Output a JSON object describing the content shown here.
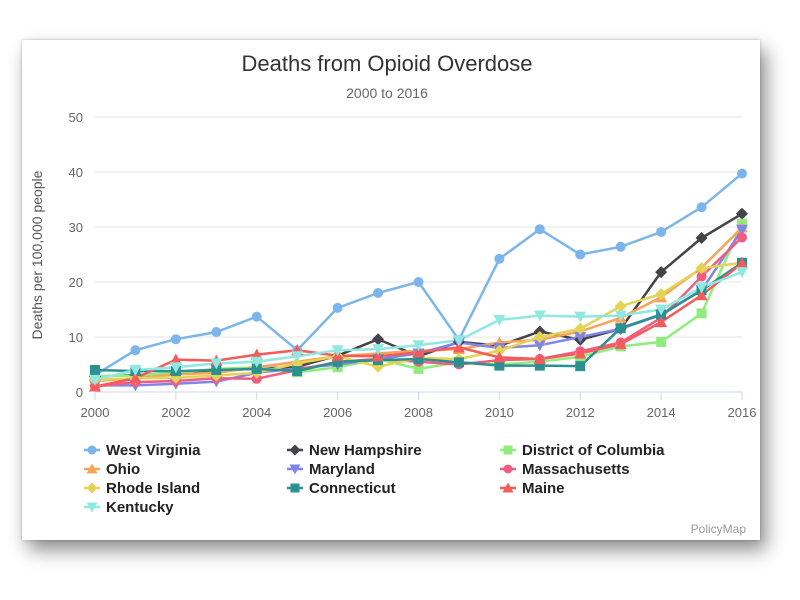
{
  "chart_data": {
    "type": "line",
    "title": "Deaths from Opioid Overdose",
    "subtitle": "2000 to 2016",
    "xlabel": "",
    "ylabel": "Deaths per 100,000 people",
    "x": [
      2000,
      2001,
      2002,
      2003,
      2004,
      2005,
      2006,
      2007,
      2008,
      2009,
      2010,
      2011,
      2012,
      2013,
      2014,
      2015,
      2016
    ],
    "xticks": [
      "2000",
      "2002",
      "2004",
      "2006",
      "2008",
      "2010",
      "2012",
      "2014",
      "2016"
    ],
    "ylim": [
      0,
      50
    ],
    "yticks": [
      "0",
      "10",
      "20",
      "30",
      "40",
      "50"
    ],
    "grid": true,
    "legend_position": "bottom",
    "credit": "PolicyMap",
    "series": [
      {
        "name": "West Virginia",
        "color": "#7cb5ec",
        "marker": "circle",
        "values": [
          3.1,
          7.6,
          9.6,
          10.9,
          13.7,
          7.6,
          15.3,
          18.0,
          20.0,
          9.5,
          24.2,
          29.6,
          25.0,
          26.4,
          29.1,
          33.6,
          39.7
        ]
      },
      {
        "name": "New Hampshire",
        "color": "#434348",
        "marker": "diamond",
        "values": [
          2.8,
          3.1,
          3.3,
          4.0,
          4.2,
          4.6,
          6.6,
          9.6,
          6.5,
          9.1,
          8.4,
          11.0,
          9.5,
          11.5,
          21.8,
          28.0,
          32.4
        ]
      },
      {
        "name": "District of Columbia",
        "color": "#90ed7d",
        "marker": "square",
        "values": [
          2.9,
          3.0,
          3.5,
          4.2,
          4.5,
          3.6,
          4.5,
          6.0,
          4.2,
          5.4,
          5.0,
          5.5,
          6.4,
          8.3,
          9.1,
          14.3,
          30.6
        ]
      },
      {
        "name": "Ohio",
        "color": "#f7a35c",
        "marker": "triangle",
        "values": [
          2.0,
          2.5,
          3.2,
          3.5,
          4.5,
          5.5,
          6.5,
          7.0,
          7.5,
          7.8,
          9.0,
          9.5,
          11.0,
          13.5,
          17.2,
          22.6,
          29.9
        ]
      },
      {
        "name": "Maryland",
        "color": "#8085e9",
        "marker": "triangle-down",
        "values": [
          1.2,
          1.2,
          1.5,
          1.9,
          3.5,
          4.3,
          5.0,
          6.0,
          7.0,
          9.0,
          8.0,
          8.5,
          10.0,
          11.5,
          14.0,
          18.5,
          29.5
        ]
      },
      {
        "name": "Massachusetts",
        "color": "#f15c80",
        "marker": "circle",
        "values": [
          1.0,
          1.8,
          2.0,
          2.5,
          2.4,
          4.0,
          5.5,
          6.0,
          5.5,
          5.0,
          5.8,
          6.0,
          7.4,
          9.0,
          13.5,
          21.0,
          28.1
        ]
      },
      {
        "name": "Rhode Island",
        "color": "#e4d354",
        "marker": "diamond",
        "values": [
          2.2,
          2.5,
          2.6,
          3.0,
          3.5,
          5.2,
          6.5,
          4.6,
          6.2,
          6.0,
          7.5,
          10.0,
          11.5,
          15.6,
          17.8,
          22.5,
          23.5
        ]
      },
      {
        "name": "Connecticut",
        "color": "#2b908f",
        "marker": "square",
        "values": [
          4.0,
          3.8,
          3.8,
          4.0,
          4.2,
          3.8,
          5.5,
          5.8,
          6.0,
          5.4,
          4.8,
          4.8,
          4.7,
          11.6,
          14.1,
          18.5,
          23.5
        ]
      },
      {
        "name": "Maine",
        "color": "#f45b5b",
        "marker": "triangle",
        "values": [
          1.0,
          2.5,
          5.9,
          5.7,
          6.8,
          7.6,
          6.6,
          6.5,
          7.2,
          8.1,
          6.3,
          6.0,
          7.0,
          8.7,
          12.7,
          17.6,
          23.4
        ]
      },
      {
        "name": "Kentucky",
        "color": "#91e8e1",
        "marker": "triangle-down",
        "values": [
          2.2,
          4.0,
          4.5,
          5.2,
          5.5,
          6.5,
          7.6,
          7.8,
          8.5,
          9.4,
          13.1,
          13.9,
          13.7,
          13.9,
          15.0,
          19.0,
          21.8
        ]
      }
    ]
  }
}
